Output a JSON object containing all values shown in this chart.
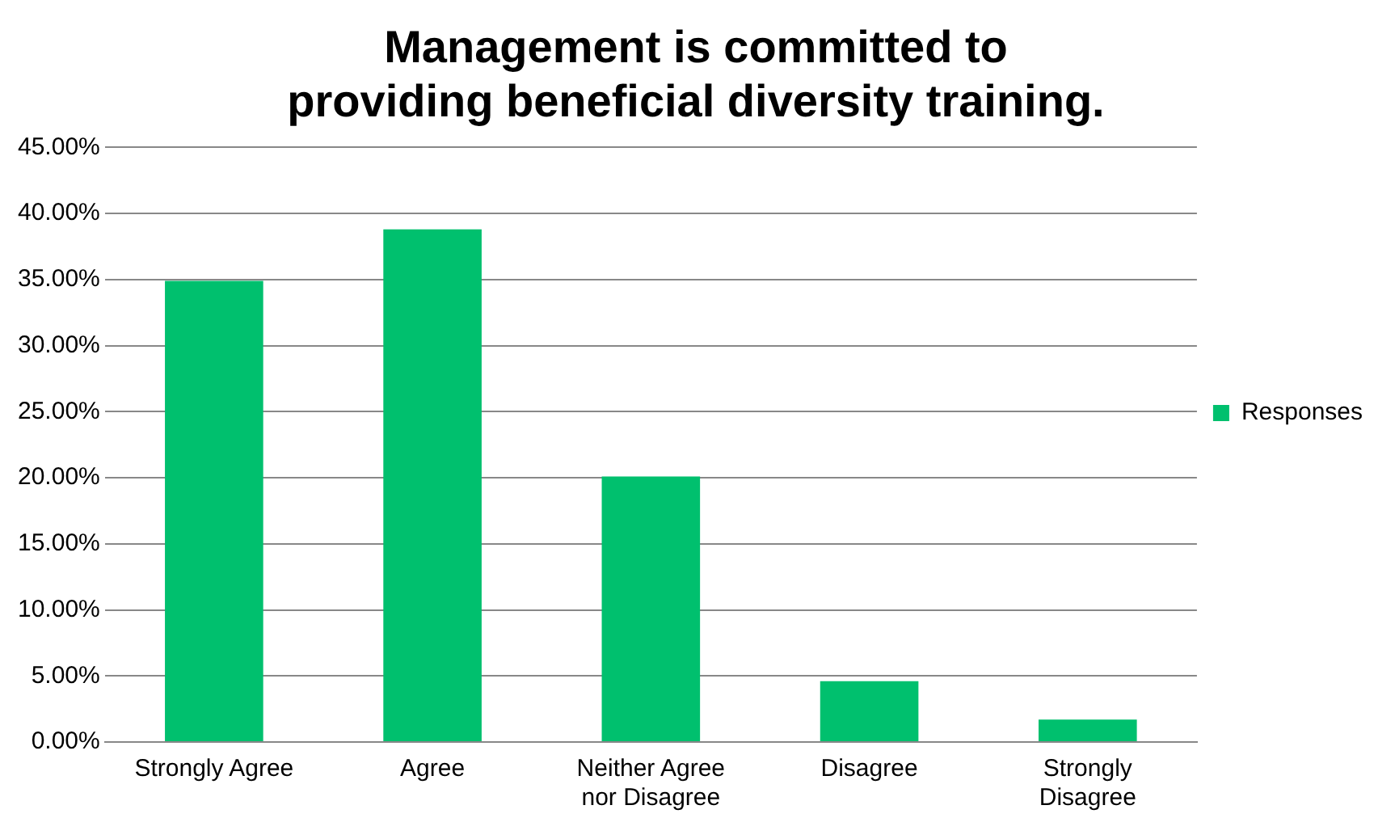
{
  "chart_data": {
    "type": "bar",
    "title": "Management is committed to providing beneficial diversity training.",
    "categories": [
      "Strongly Agree",
      "Agree",
      "Neither Agree nor Disagree",
      "Disagree",
      "Strongly Disagree"
    ],
    "series": [
      {
        "name": "Responses",
        "color": "#00c06e",
        "values": [
          34.9,
          38.8,
          20.1,
          4.6,
          1.7
        ]
      }
    ],
    "ylim": [
      0,
      45
    ],
    "yticks": [
      {
        "value": 0,
        "label": "0.00%"
      },
      {
        "value": 5,
        "label": "5.00%"
      },
      {
        "value": 10,
        "label": "10.00%"
      },
      {
        "value": 15,
        "label": "15.00%"
      },
      {
        "value": 20,
        "label": "20.00%"
      },
      {
        "value": 25,
        "label": "25.00%"
      },
      {
        "value": 30,
        "label": "30.00%"
      },
      {
        "value": 35,
        "label": "35.00%"
      },
      {
        "value": 40,
        "label": "40.00%"
      },
      {
        "value": 45,
        "label": "45.00%"
      }
    ],
    "grid": "y",
    "legend": "right"
  }
}
